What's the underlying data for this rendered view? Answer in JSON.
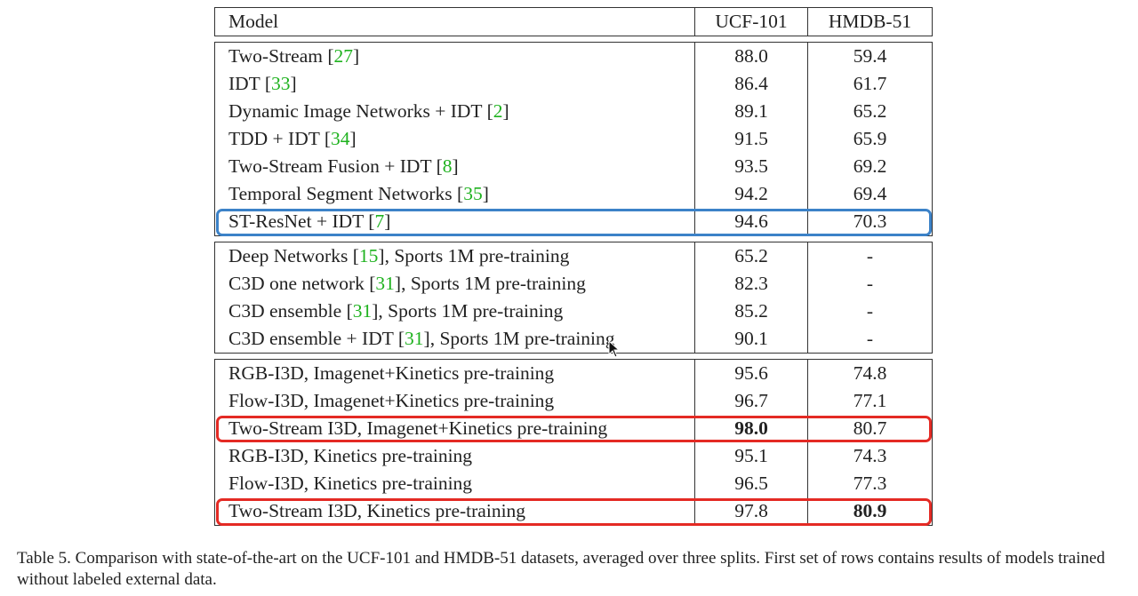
{
  "table": {
    "headers": [
      "Model",
      "UCF-101",
      "HMDB-51"
    ],
    "groups": [
      [
        {
          "model": "Two-Stream",
          "ref": "27",
          "suffix": "",
          "ucf": "88.0",
          "hmdb": "59.4"
        },
        {
          "model": "IDT",
          "ref": "33",
          "suffix": "",
          "ucf": "86.4",
          "hmdb": "61.7"
        },
        {
          "model": "Dynamic Image Networks + IDT",
          "ref": "2",
          "suffix": "",
          "ucf": "89.1",
          "hmdb": "65.2"
        },
        {
          "model": "TDD + IDT",
          "ref": "34",
          "suffix": "",
          "ucf": "91.5",
          "hmdb": "65.9"
        },
        {
          "model": "Two-Stream Fusion + IDT",
          "ref": "8",
          "suffix": "",
          "ucf": "93.5",
          "hmdb": "69.2"
        },
        {
          "model": "Temporal Segment Networks",
          "ref": "35",
          "suffix": "",
          "ucf": "94.2",
          "hmdb": "69.4"
        },
        {
          "model": "ST-ResNet + IDT",
          "ref": "7",
          "suffix": "",
          "ucf": "94.6",
          "hmdb": "70.3",
          "highlight": "blue"
        }
      ],
      [
        {
          "model": "Deep Networks",
          "ref": "15",
          "suffix": ", Sports 1M pre-training",
          "ucf": "65.2",
          "hmdb": "-"
        },
        {
          "model": "C3D one network",
          "ref": "31",
          "suffix": ", Sports 1M pre-training",
          "ucf": "82.3",
          "hmdb": "-"
        },
        {
          "model": "C3D ensemble",
          "ref": "31",
          "suffix": ", Sports 1M pre-training",
          "ucf": "85.2",
          "hmdb": "-"
        },
        {
          "model": "C3D ensemble + IDT",
          "ref": "31",
          "suffix": ", Sports 1M pre-training",
          "ucf": "90.1",
          "hmdb": "-"
        }
      ],
      [
        {
          "model": "RGB-I3D, Imagenet+Kinetics pre-training",
          "ucf": "95.6",
          "hmdb": "74.8"
        },
        {
          "model": "Flow-I3D, Imagenet+Kinetics pre-training",
          "ucf": "96.7",
          "hmdb": "77.1"
        },
        {
          "model": "Two-Stream I3D, Imagenet+Kinetics pre-training",
          "ucf": "98.0",
          "hmdb": "80.7",
          "bold": "ucf",
          "highlight": "red"
        },
        {
          "model": "RGB-I3D, Kinetics pre-training",
          "ucf": "95.1",
          "hmdb": "74.3"
        },
        {
          "model": "Flow-I3D, Kinetics pre-training",
          "ucf": "96.5",
          "hmdb": "77.3"
        },
        {
          "model": "Two-Stream I3D, Kinetics pre-training",
          "ucf": "97.8",
          "hmdb": "80.9",
          "bold": "hmdb",
          "highlight": "red"
        }
      ]
    ]
  },
  "caption": "Table 5.  Comparison with state-of-the-art on the UCF-101 and HMDB-51 datasets, averaged over three splits. First set of rows contains results of models trained without labeled external data.",
  "colors": {
    "reference": "#1fb21f",
    "highlight_blue": "#3c82c8",
    "highlight_red": "#e42a24"
  }
}
